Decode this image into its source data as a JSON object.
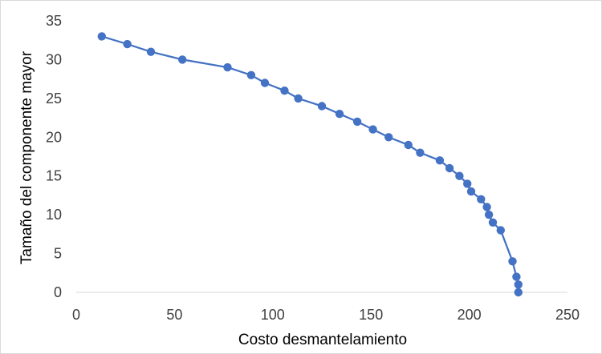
{
  "chart_data": {
    "type": "scatter",
    "title": "",
    "xlabel": "Costo desmantelamiento",
    "ylabel": "Tamaño del componente  mayor",
    "xlim": [
      0,
      250
    ],
    "ylim": [
      0,
      35
    ],
    "x_ticks": [
      "0",
      "50",
      "100",
      "150",
      "200",
      "250"
    ],
    "y_ticks": [
      "0",
      "5",
      "10",
      "15",
      "20",
      "25",
      "30",
      "35"
    ],
    "grid": false,
    "legend": "none",
    "series": [
      {
        "color": "#4472c4",
        "points": [
          {
            "x": 13,
            "y": 33
          },
          {
            "x": 26,
            "y": 32
          },
          {
            "x": 38,
            "y": 31
          },
          {
            "x": 54,
            "y": 30
          },
          {
            "x": 77,
            "y": 29
          },
          {
            "x": 89,
            "y": 28
          },
          {
            "x": 96,
            "y": 27
          },
          {
            "x": 106,
            "y": 26
          },
          {
            "x": 113,
            "y": 25
          },
          {
            "x": 125,
            "y": 24
          },
          {
            "x": 134,
            "y": 23
          },
          {
            "x": 143,
            "y": 22
          },
          {
            "x": 151,
            "y": 21
          },
          {
            "x": 159,
            "y": 20
          },
          {
            "x": 169,
            "y": 19
          },
          {
            "x": 175,
            "y": 18
          },
          {
            "x": 185,
            "y": 17
          },
          {
            "x": 190,
            "y": 16
          },
          {
            "x": 195,
            "y": 15
          },
          {
            "x": 199,
            "y": 14
          },
          {
            "x": 201,
            "y": 13
          },
          {
            "x": 206,
            "y": 12
          },
          {
            "x": 209,
            "y": 11
          },
          {
            "x": 210,
            "y": 10
          },
          {
            "x": 212,
            "y": 9
          },
          {
            "x": 216,
            "y": 8
          },
          {
            "x": 222,
            "y": 4
          },
          {
            "x": 224,
            "y": 2
          },
          {
            "x": 225,
            "y": 1
          },
          {
            "x": 225,
            "y": 0
          }
        ]
      }
    ]
  }
}
